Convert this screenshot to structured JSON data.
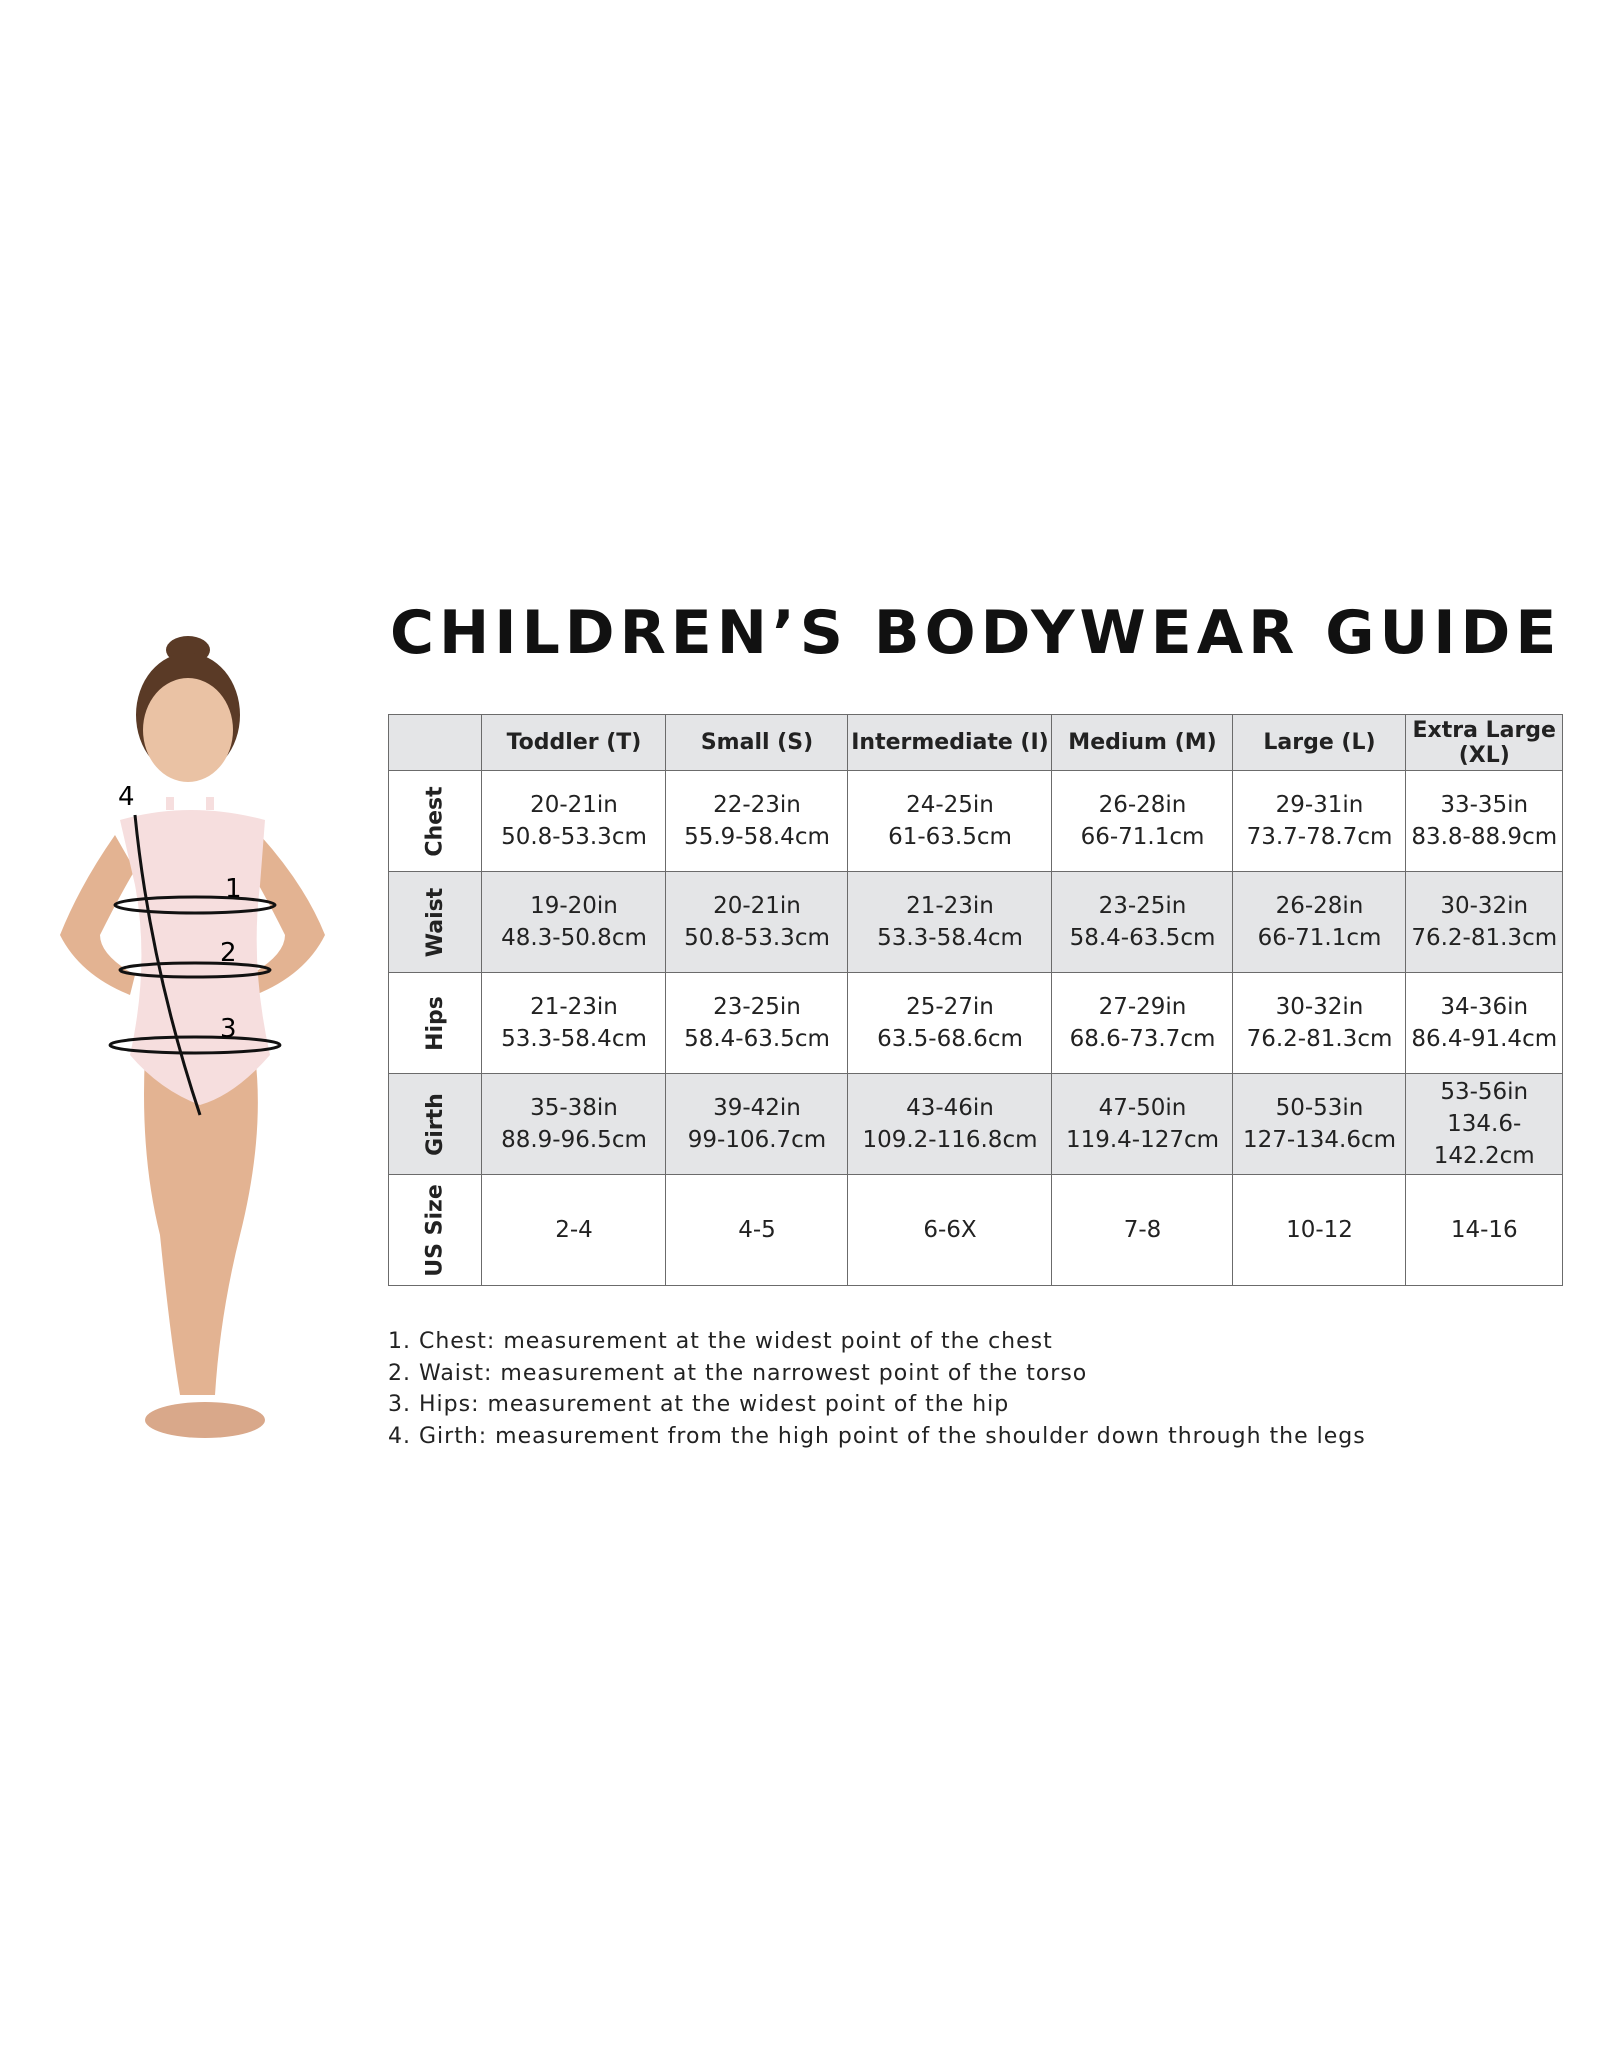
{
  "title": "CHILDREN’S BODYWEAR GUIDE",
  "table": {
    "columns": [
      "Toddler (T)",
      "Small (S)",
      "Intermediate (I)",
      "Medium (M)",
      "Large (L)",
      "Extra Large (XL)"
    ],
    "rows": [
      {
        "label": "Chest",
        "cells": [
          [
            "20-21in",
            "50.8-53.3cm"
          ],
          [
            "22-23in",
            "55.9-58.4cm"
          ],
          [
            "24-25in",
            "61-63.5cm"
          ],
          [
            "26-28in",
            "66-71.1cm"
          ],
          [
            "29-31in",
            "73.7-78.7cm"
          ],
          [
            "33-35in",
            "83.8-88.9cm"
          ]
        ]
      },
      {
        "label": "Waist",
        "cells": [
          [
            "19-20in",
            "48.3-50.8cm"
          ],
          [
            "20-21in",
            "50.8-53.3cm"
          ],
          [
            "21-23in",
            "53.3-58.4cm"
          ],
          [
            "23-25in",
            "58.4-63.5cm"
          ],
          [
            "26-28in",
            "66-71.1cm"
          ],
          [
            "30-32in",
            "76.2-81.3cm"
          ]
        ]
      },
      {
        "label": "Hips",
        "cells": [
          [
            "21-23in",
            "53.3-58.4cm"
          ],
          [
            "23-25in",
            "58.4-63.5cm"
          ],
          [
            "25-27in",
            "63.5-68.6cm"
          ],
          [
            "27-29in",
            "68.6-73.7cm"
          ],
          [
            "30-32in",
            "76.2-81.3cm"
          ],
          [
            "34-36in",
            "86.4-91.4cm"
          ]
        ]
      },
      {
        "label": "Girth",
        "cells": [
          [
            "35-38in",
            "88.9-96.5cm"
          ],
          [
            "39-42in",
            "99-106.7cm"
          ],
          [
            "43-46in",
            "109.2-116.8cm"
          ],
          [
            "47-50in",
            "119.4-127cm"
          ],
          [
            "50-53in",
            "127-134.6cm"
          ],
          [
            "53-56in",
            "134.6-142.2cm"
          ]
        ]
      },
      {
        "label": "US Size",
        "cells": [
          [
            "2-4"
          ],
          [
            "4-5"
          ],
          [
            "6-6X"
          ],
          [
            "7-8"
          ],
          [
            "10-12"
          ],
          [
            "14-16"
          ]
        ]
      }
    ]
  },
  "notes": [
    "1. Chest: measurement at the widest point of the chest",
    "2. Waist: measurement at the narrowest point of the torso",
    "3. Hips: measurement at the widest point of the hip",
    "4. Girth: measurement from the high point of the shoulder down through the legs"
  ],
  "figure": {
    "markers": [
      "1",
      "2",
      "3",
      "4"
    ]
  },
  "colors": {
    "header_bg": "#e4e5e7",
    "border": "#6b6b6b",
    "leotard": "#f6dede",
    "skin": "#e3b392"
  }
}
